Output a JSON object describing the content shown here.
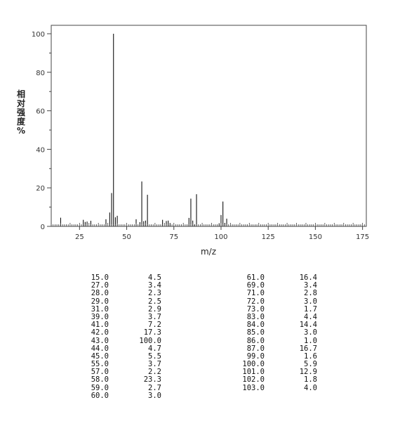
{
  "chart_data": {
    "type": "bar",
    "xlabel": "m/z",
    "ylabel": "相对强度%",
    "xlim": [
      10,
      177
    ],
    "ylim": [
      0,
      100
    ],
    "xticks": [
      25,
      50,
      75,
      100,
      125,
      150,
      175
    ],
    "yticks": [
      0,
      20,
      40,
      60,
      80,
      100
    ],
    "grid": false,
    "peaks": [
      {
        "mz": "15.0",
        "abundance": "4.5"
      },
      {
        "mz": "27.0",
        "abundance": "3.4"
      },
      {
        "mz": "28.0",
        "abundance": "2.3"
      },
      {
        "mz": "29.0",
        "abundance": "2.5"
      },
      {
        "mz": "31.0",
        "abundance": "2.9"
      },
      {
        "mz": "39.0",
        "abundance": "3.7"
      },
      {
        "mz": "41.0",
        "abundance": "7.2"
      },
      {
        "mz": "42.0",
        "abundance": "17.3"
      },
      {
        "mz": "43.0",
        "abundance": "100.0"
      },
      {
        "mz": "44.0",
        "abundance": "4.7"
      },
      {
        "mz": "45.0",
        "abundance": "5.5"
      },
      {
        "mz": "55.0",
        "abundance": "3.7"
      },
      {
        "mz": "57.0",
        "abundance": "2.2"
      },
      {
        "mz": "58.0",
        "abundance": "23.3"
      },
      {
        "mz": "59.0",
        "abundance": "2.7"
      },
      {
        "mz": "60.0",
        "abundance": "3.0"
      },
      {
        "mz": "61.0",
        "abundance": "16.4"
      },
      {
        "mz": "69.0",
        "abundance": "3.4"
      },
      {
        "mz": "71.0",
        "abundance": "2.8"
      },
      {
        "mz": "72.0",
        "abundance": "3.0"
      },
      {
        "mz": "73.0",
        "abundance": "1.7"
      },
      {
        "mz": "83.0",
        "abundance": "4.4"
      },
      {
        "mz": "84.0",
        "abundance": "14.4"
      },
      {
        "mz": "85.0",
        "abundance": "3.0"
      },
      {
        "mz": "86.0",
        "abundance": "1.0"
      },
      {
        "mz": "87.0",
        "abundance": "16.7"
      },
      {
        "mz": "99.0",
        "abundance": "1.6"
      },
      {
        "mz": "100.0",
        "abundance": "5.9"
      },
      {
        "mz": "101.0",
        "abundance": "12.9"
      },
      {
        "mz": "102.0",
        "abundance": "1.8"
      },
      {
        "mz": "103.0",
        "abundance": "4.0"
      }
    ]
  }
}
